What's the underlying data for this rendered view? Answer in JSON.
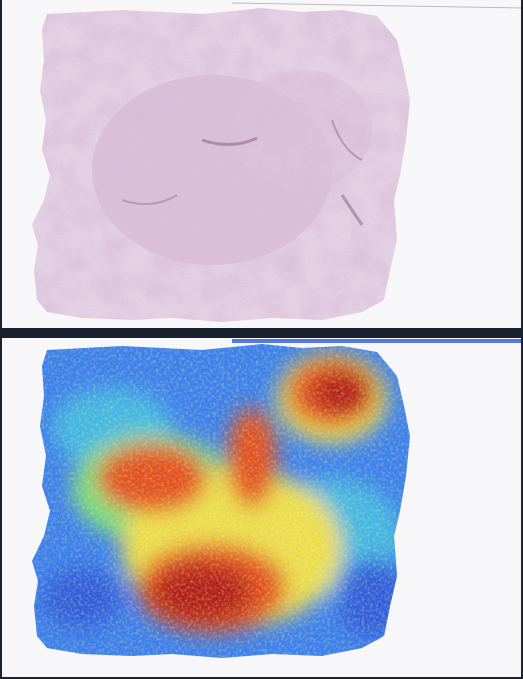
{
  "figure": {
    "panels": [
      {
        "id": "he-stain",
        "kind": "tissue-section-he"
      },
      {
        "id": "heatmap",
        "kind": "tissue-heatmap-overlay"
      }
    ],
    "colors": {
      "background": "#f7f7f9",
      "border": "#1b2230",
      "tissue_light": "#e9d8e6",
      "tissue_mid": "#d9bfd6",
      "tissue_dark": "#b992b3",
      "heat_low": "#2f5be0",
      "heat_lowmid": "#3fb8e6",
      "heat_mid": "#7ee07a",
      "heat_midhigh": "#f0e04a",
      "heat_high": "#e6501e",
      "heat_max": "#b51c12"
    }
  }
}
